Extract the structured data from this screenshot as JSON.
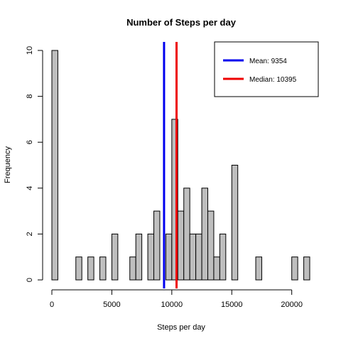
{
  "chart_data": {
    "type": "histogram",
    "title": "Number of Steps per day",
    "xlabel": "Steps per day",
    "ylabel": "Frequency",
    "bin_width": 500,
    "x_range": [
      0,
      21500
    ],
    "xlim": [
      0,
      21500
    ],
    "ylim": [
      0,
      10
    ],
    "x_ticks": [
      0,
      5000,
      10000,
      15000,
      20000
    ],
    "y_ticks": [
      0,
      2,
      4,
      6,
      8,
      10
    ],
    "bins": [
      {
        "x0": 0,
        "x1": 500,
        "count": 10
      },
      {
        "x0": 2000,
        "x1": 2500,
        "count": 1
      },
      {
        "x0": 3000,
        "x1": 3500,
        "count": 1
      },
      {
        "x0": 4000,
        "x1": 4500,
        "count": 1
      },
      {
        "x0": 5000,
        "x1": 5500,
        "count": 2
      },
      {
        "x0": 6500,
        "x1": 7000,
        "count": 1
      },
      {
        "x0": 7000,
        "x1": 7500,
        "count": 2
      },
      {
        "x0": 8000,
        "x1": 8500,
        "count": 2
      },
      {
        "x0": 8500,
        "x1": 9000,
        "count": 3
      },
      {
        "x0": 9500,
        "x1": 10000,
        "count": 2
      },
      {
        "x0": 10000,
        "x1": 10500,
        "count": 7
      },
      {
        "x0": 10500,
        "x1": 11000,
        "count": 3
      },
      {
        "x0": 11000,
        "x1": 11500,
        "count": 4
      },
      {
        "x0": 11500,
        "x1": 12000,
        "count": 2
      },
      {
        "x0": 12000,
        "x1": 12500,
        "count": 2
      },
      {
        "x0": 12500,
        "x1": 13000,
        "count": 4
      },
      {
        "x0": 13000,
        "x1": 13500,
        "count": 3
      },
      {
        "x0": 13500,
        "x1": 14000,
        "count": 1
      },
      {
        "x0": 14000,
        "x1": 14500,
        "count": 2
      },
      {
        "x0": 15000,
        "x1": 15500,
        "count": 5
      },
      {
        "x0": 17000,
        "x1": 17500,
        "count": 1
      },
      {
        "x0": 20000,
        "x1": 20500,
        "count": 1
      },
      {
        "x0": 21000,
        "x1": 21500,
        "count": 1
      }
    ],
    "vertical_lines": [
      {
        "name": "Mean",
        "value": 9354,
        "color": "#0000ee"
      },
      {
        "name": "Median",
        "value": 10395,
        "color": "#ee0000"
      }
    ],
    "legend": {
      "placement": "top-right",
      "entries": [
        {
          "label": "Mean:  9354",
          "color": "#0000ee"
        },
        {
          "label": "Median: 10395",
          "color": "#ee0000"
        }
      ]
    },
    "grid": false
  }
}
